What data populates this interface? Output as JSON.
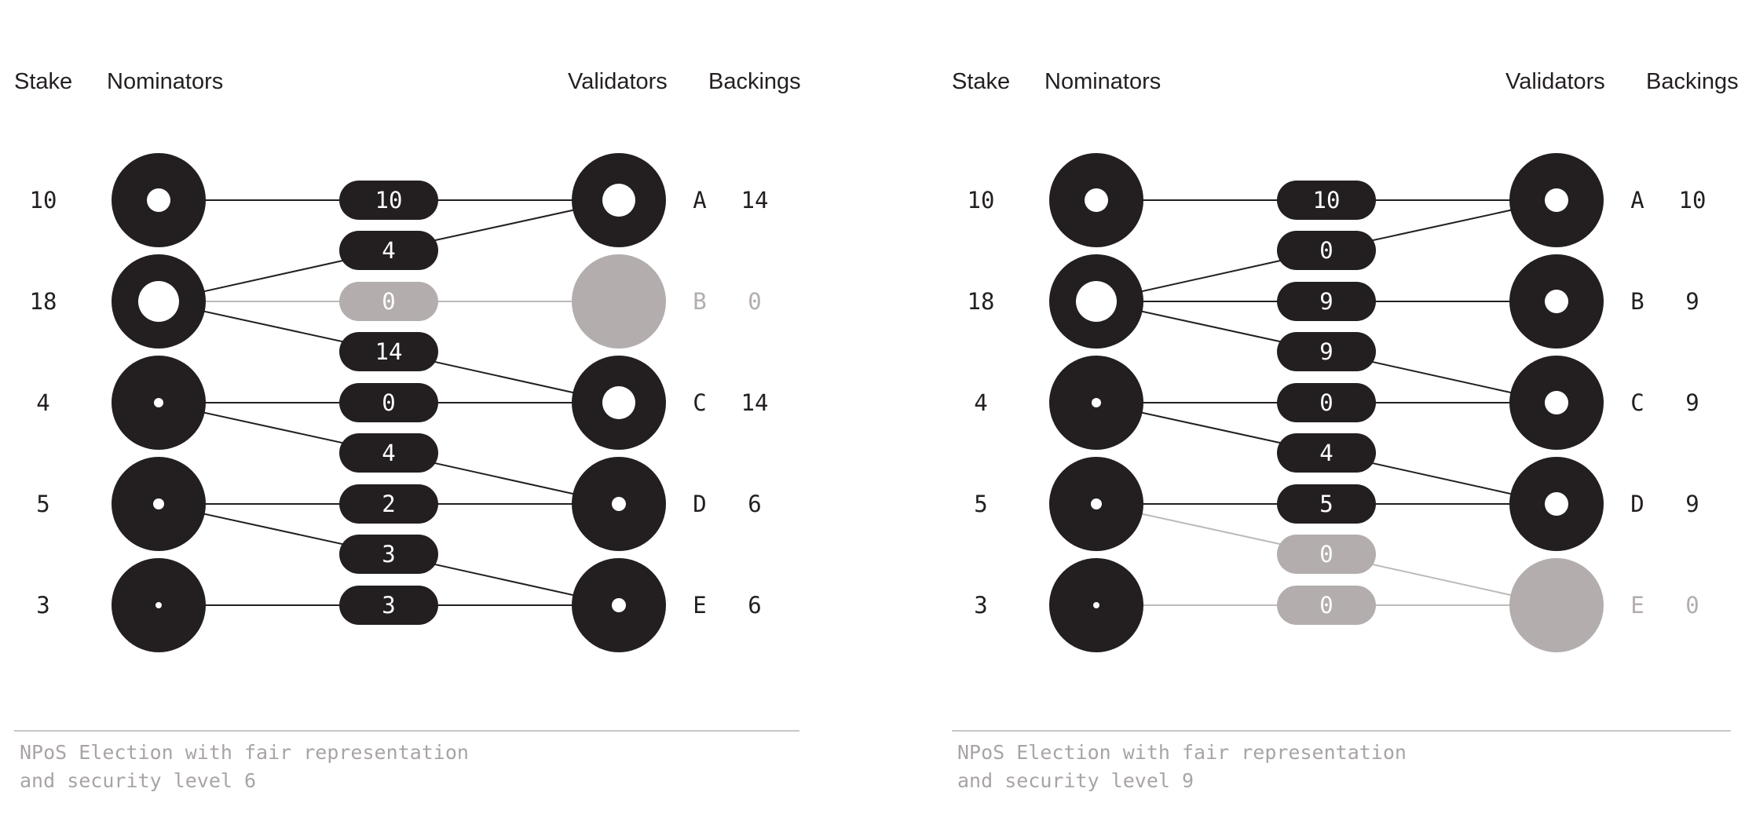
{
  "colors": {
    "ink": "#231f20",
    "inactive": "#b3adad",
    "inactive_line": "#bdbaba",
    "caption": "#a9a4a4",
    "hole": "#ffffff"
  },
  "diagrams": [
    {
      "headers": {
        "stake": "Stake",
        "nominators": "Nominators",
        "validators": "Validators",
        "backings": "Backings"
      },
      "nominators": [
        {
          "stake": "10"
        },
        {
          "stake": "18"
        },
        {
          "stake": "4"
        },
        {
          "stake": "5"
        },
        {
          "stake": "3"
        }
      ],
      "validators": [
        {
          "label": "A",
          "backing": "14",
          "active": true
        },
        {
          "label": "B",
          "backing": "0",
          "active": false
        },
        {
          "label": "C",
          "backing": "14",
          "active": true
        },
        {
          "label": "D",
          "backing": "6",
          "active": true
        },
        {
          "label": "E",
          "backing": "6",
          "active": true
        }
      ],
      "edges": [
        {
          "nominator": 0,
          "validator": 0,
          "value": "10",
          "active": true
        },
        {
          "nominator": 1,
          "validator": 0,
          "value": "4",
          "active": true
        },
        {
          "nominator": 1,
          "validator": 1,
          "value": "0",
          "active": false
        },
        {
          "nominator": 1,
          "validator": 2,
          "value": "14",
          "active": true
        },
        {
          "nominator": 2,
          "validator": 2,
          "value": "0",
          "active": true
        },
        {
          "nominator": 2,
          "validator": 3,
          "value": "4",
          "active": true
        },
        {
          "nominator": 3,
          "validator": 3,
          "value": "2",
          "active": true
        },
        {
          "nominator": 3,
          "validator": 4,
          "value": "3",
          "active": true
        },
        {
          "nominator": 4,
          "validator": 4,
          "value": "3",
          "active": true
        }
      ],
      "caption": [
        "NPoS Election with fair representation",
        "and security level 6"
      ]
    },
    {
      "headers": {
        "stake": "Stake",
        "nominators": "Nominators",
        "validators": "Validators",
        "backings": "Backings"
      },
      "nominators": [
        {
          "stake": "10"
        },
        {
          "stake": "18"
        },
        {
          "stake": "4"
        },
        {
          "stake": "5"
        },
        {
          "stake": "3"
        }
      ],
      "validators": [
        {
          "label": "A",
          "backing": "10",
          "active": true
        },
        {
          "label": "B",
          "backing": "9",
          "active": true
        },
        {
          "label": "C",
          "backing": "9",
          "active": true
        },
        {
          "label": "D",
          "backing": "9",
          "active": true
        },
        {
          "label": "E",
          "backing": "0",
          "active": false
        }
      ],
      "edges": [
        {
          "nominator": 0,
          "validator": 0,
          "value": "10",
          "active": true
        },
        {
          "nominator": 1,
          "validator": 0,
          "value": "0",
          "active": true
        },
        {
          "nominator": 1,
          "validator": 1,
          "value": "9",
          "active": true
        },
        {
          "nominator": 1,
          "validator": 2,
          "value": "9",
          "active": true
        },
        {
          "nominator": 2,
          "validator": 2,
          "value": "0",
          "active": true
        },
        {
          "nominator": 2,
          "validator": 3,
          "value": "4",
          "active": true
        },
        {
          "nominator": 3,
          "validator": 3,
          "value": "5",
          "active": true
        },
        {
          "nominator": 3,
          "validator": 4,
          "value": "0",
          "active": false
        },
        {
          "nominator": 4,
          "validator": 4,
          "value": "0",
          "active": false
        }
      ],
      "caption": [
        "NPoS Election with fair representation",
        "and security level 9"
      ]
    }
  ]
}
